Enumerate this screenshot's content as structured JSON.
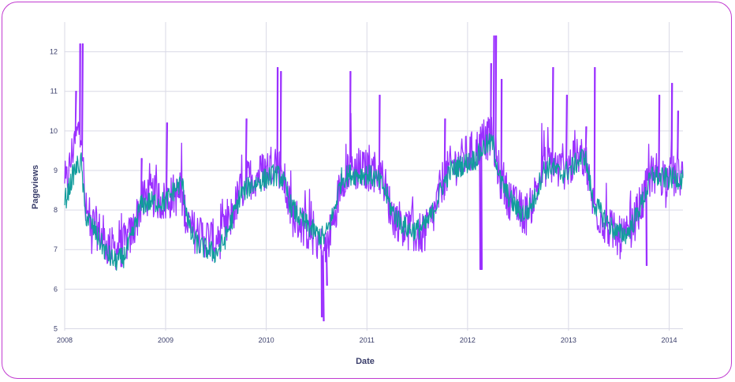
{
  "chart_data": {
    "type": "line",
    "xlabel": "Date",
    "ylabel": "Pageviews",
    "xlim": [
      "2008-01-01",
      "2014-02-20"
    ],
    "ylim": [
      4.95,
      12.75
    ],
    "x_ticks": [
      "2008",
      "2009",
      "2010",
      "2011",
      "2012",
      "2013",
      "2014"
    ],
    "y_ticks": [
      "5",
      "6",
      "7",
      "8",
      "9",
      "10",
      "11",
      "12"
    ],
    "grid": true,
    "legend": "none",
    "series": [
      {
        "color": "#9b30ff",
        "style": "noisy daily",
        "points": [
          [
            "2008-01-01",
            8.5
          ],
          [
            "2008-01-15",
            8.9
          ],
          [
            "2008-02-01",
            9.6
          ],
          [
            "2008-02-15",
            9.9
          ],
          [
            "2008-03-01",
            10.2
          ],
          [
            "2008-03-15",
            8.0
          ],
          [
            "2008-04-01",
            7.7
          ],
          [
            "2008-05-01",
            7.5
          ],
          [
            "2008-06-01",
            7.1
          ],
          [
            "2008-07-01",
            7.0
          ],
          [
            "2008-08-01",
            7.1
          ],
          [
            "2008-09-01",
            7.4
          ],
          [
            "2008-10-01",
            8.1
          ],
          [
            "2008-11-01",
            8.4
          ],
          [
            "2008-12-01",
            8.3
          ],
          [
            "2009-01-01",
            8.2
          ],
          [
            "2009-02-01",
            8.4
          ],
          [
            "2009-03-01",
            8.3
          ],
          [
            "2009-04-01",
            7.5
          ],
          [
            "2009-05-01",
            7.4
          ],
          [
            "2009-06-01",
            7.3
          ],
          [
            "2009-07-01",
            7.2
          ],
          [
            "2009-08-01",
            7.4
          ],
          [
            "2009-09-01",
            7.9
          ],
          [
            "2009-10-01",
            8.5
          ],
          [
            "2009-11-01",
            8.8
          ],
          [
            "2009-12-01",
            8.9
          ],
          [
            "2010-01-01",
            9.0
          ],
          [
            "2010-02-01",
            9.3
          ],
          [
            "2010-03-01",
            8.9
          ],
          [
            "2010-04-01",
            7.9
          ],
          [
            "2010-05-01",
            7.7
          ],
          [
            "2010-06-01",
            7.5
          ],
          [
            "2010-07-01",
            7.3
          ],
          [
            "2010-08-01",
            6.9
          ],
          [
            "2010-09-01",
            7.7
          ],
          [
            "2010-10-01",
            8.8
          ],
          [
            "2010-11-01",
            9.1
          ],
          [
            "2010-12-01",
            9.0
          ],
          [
            "2011-01-01",
            9.0
          ],
          [
            "2011-02-01",
            9.0
          ],
          [
            "2011-03-01",
            8.8
          ],
          [
            "2011-04-01",
            7.9
          ],
          [
            "2011-05-01",
            7.7
          ],
          [
            "2011-06-01",
            7.5
          ],
          [
            "2011-07-01",
            7.4
          ],
          [
            "2011-08-01",
            7.4
          ],
          [
            "2011-09-01",
            7.9
          ],
          [
            "2011-10-01",
            8.7
          ],
          [
            "2011-11-01",
            9.1
          ],
          [
            "2011-12-01",
            9.2
          ],
          [
            "2012-01-01",
            9.4
          ],
          [
            "2012-02-01",
            9.5
          ],
          [
            "2012-03-01",
            9.8
          ],
          [
            "2012-04-01",
            9.8
          ],
          [
            "2012-05-01",
            8.7
          ],
          [
            "2012-06-01",
            8.3
          ],
          [
            "2012-07-01",
            8.0
          ],
          [
            "2012-08-01",
            7.9
          ],
          [
            "2012-09-01",
            8.4
          ],
          [
            "2012-10-01",
            9.1
          ],
          [
            "2012-11-01",
            9.2
          ],
          [
            "2012-12-01",
            9.0
          ],
          [
            "2013-01-01",
            9.1
          ],
          [
            "2013-02-01",
            9.3
          ],
          [
            "2013-03-01",
            9.4
          ],
          [
            "2013-04-01",
            8.1
          ],
          [
            "2013-05-01",
            7.8
          ],
          [
            "2013-06-01",
            7.5
          ],
          [
            "2013-07-01",
            7.3
          ],
          [
            "2013-08-01",
            7.3
          ],
          [
            "2013-09-01",
            7.8
          ],
          [
            "2013-10-01",
            8.3
          ],
          [
            "2013-11-01",
            9.0
          ],
          [
            "2013-12-01",
            8.9
          ],
          [
            "2014-01-01",
            8.8
          ],
          [
            "2014-02-20",
            8.9
          ]
        ],
        "spikes": [
          [
            "2008-02-25",
            12.2
          ],
          [
            "2008-03-05",
            12.2
          ],
          [
            "2008-02-10",
            11.0
          ],
          [
            "2009-01-05",
            10.2
          ],
          [
            "2008-10-05",
            9.3
          ],
          [
            "2009-10-20",
            10.3
          ],
          [
            "2010-02-10",
            11.6
          ],
          [
            "2010-02-22",
            11.5
          ],
          [
            "2010-07-20",
            5.3
          ],
          [
            "2010-07-27",
            5.2
          ],
          [
            "2010-08-08",
            6.1
          ],
          [
            "2010-11-01",
            11.5
          ],
          [
            "2011-02-15",
            10.9
          ],
          [
            "2011-10-10",
            10.3
          ],
          [
            "2012-02-15",
            6.5
          ],
          [
            "2012-02-20",
            6.5
          ],
          [
            "2012-03-25",
            11.7
          ],
          [
            "2012-04-05",
            12.4
          ],
          [
            "2012-04-12",
            12.4
          ],
          [
            "2012-05-02",
            11.3
          ],
          [
            "2012-11-05",
            11.6
          ],
          [
            "2012-12-25",
            10.9
          ],
          [
            "2013-03-05",
            10.1
          ],
          [
            "2013-04-05",
            11.6
          ],
          [
            "2013-10-10",
            6.6
          ],
          [
            "2013-11-25",
            10.9
          ],
          [
            "2014-01-10",
            11.2
          ],
          [
            "2014-02-01",
            10.5
          ]
        ]
      },
      {
        "color": "#119c9c",
        "style": "smoothed",
        "points": [
          [
            "2008-01-01",
            8.2
          ],
          [
            "2008-01-15",
            8.5
          ],
          [
            "2008-02-01",
            8.9
          ],
          [
            "2008-02-15",
            9.1
          ],
          [
            "2008-03-01",
            9.2
          ],
          [
            "2008-03-15",
            7.9
          ],
          [
            "2008-04-01",
            7.7
          ],
          [
            "2008-05-01",
            7.3
          ],
          [
            "2008-06-01",
            6.9
          ],
          [
            "2008-07-01",
            6.7
          ],
          [
            "2008-08-01",
            6.8
          ],
          [
            "2008-09-01",
            7.3
          ],
          [
            "2008-10-01",
            8.1
          ],
          [
            "2008-11-01",
            8.2
          ],
          [
            "2008-12-01",
            8.2
          ],
          [
            "2009-01-01",
            8.2
          ],
          [
            "2009-02-01",
            8.5
          ],
          [
            "2009-03-01",
            8.7
          ],
          [
            "2009-04-01",
            7.4
          ],
          [
            "2009-05-01",
            7.1
          ],
          [
            "2009-06-01",
            7.0
          ],
          [
            "2009-07-01",
            6.9
          ],
          [
            "2009-08-01",
            7.2
          ],
          [
            "2009-09-01",
            7.8
          ],
          [
            "2009-10-01",
            8.4
          ],
          [
            "2009-11-01",
            8.6
          ],
          [
            "2009-12-01",
            8.7
          ],
          [
            "2010-01-01",
            8.8
          ],
          [
            "2010-02-01",
            8.9
          ],
          [
            "2010-03-01",
            8.8
          ],
          [
            "2010-04-01",
            8.1
          ],
          [
            "2010-05-01",
            7.8
          ],
          [
            "2010-06-01",
            7.6
          ],
          [
            "2010-07-01",
            7.4
          ],
          [
            "2010-08-01",
            7.3
          ],
          [
            "2010-09-01",
            7.9
          ],
          [
            "2010-10-01",
            8.8
          ],
          [
            "2010-11-01",
            8.9
          ],
          [
            "2010-12-01",
            8.9
          ],
          [
            "2011-01-01",
            8.9
          ],
          [
            "2011-02-01",
            8.8
          ],
          [
            "2011-03-01",
            8.6
          ],
          [
            "2011-04-01",
            8.0
          ],
          [
            "2011-05-01",
            7.7
          ],
          [
            "2011-06-01",
            7.5
          ],
          [
            "2011-07-01",
            7.5
          ],
          [
            "2011-08-01",
            7.6
          ],
          [
            "2011-09-01",
            8.0
          ],
          [
            "2011-10-01",
            8.6
          ],
          [
            "2011-11-01",
            9.0
          ],
          [
            "2011-12-01",
            9.1
          ],
          [
            "2012-01-01",
            9.2
          ],
          [
            "2012-02-01",
            9.3
          ],
          [
            "2012-03-01",
            9.6
          ],
          [
            "2012-04-01",
            9.7
          ],
          [
            "2012-05-01",
            8.7
          ],
          [
            "2012-06-01",
            8.3
          ],
          [
            "2012-07-01",
            8.0
          ],
          [
            "2012-08-01",
            7.9
          ],
          [
            "2012-09-01",
            8.3
          ],
          [
            "2012-10-01",
            9.0
          ],
          [
            "2012-11-01",
            9.1
          ],
          [
            "2012-12-01",
            8.9
          ],
          [
            "2013-01-01",
            9.0
          ],
          [
            "2013-02-01",
            9.2
          ],
          [
            "2013-03-01",
            9.4
          ],
          [
            "2013-04-01",
            8.2
          ],
          [
            "2013-05-01",
            7.9
          ],
          [
            "2013-06-01",
            7.6
          ],
          [
            "2013-07-01",
            7.4
          ],
          [
            "2013-08-01",
            7.4
          ],
          [
            "2013-09-01",
            7.8
          ],
          [
            "2013-10-01",
            8.3
          ],
          [
            "2013-11-01",
            8.9
          ],
          [
            "2013-12-01",
            8.8
          ],
          [
            "2014-01-01",
            8.8
          ],
          [
            "2014-02-20",
            8.8
          ]
        ]
      }
    ]
  }
}
